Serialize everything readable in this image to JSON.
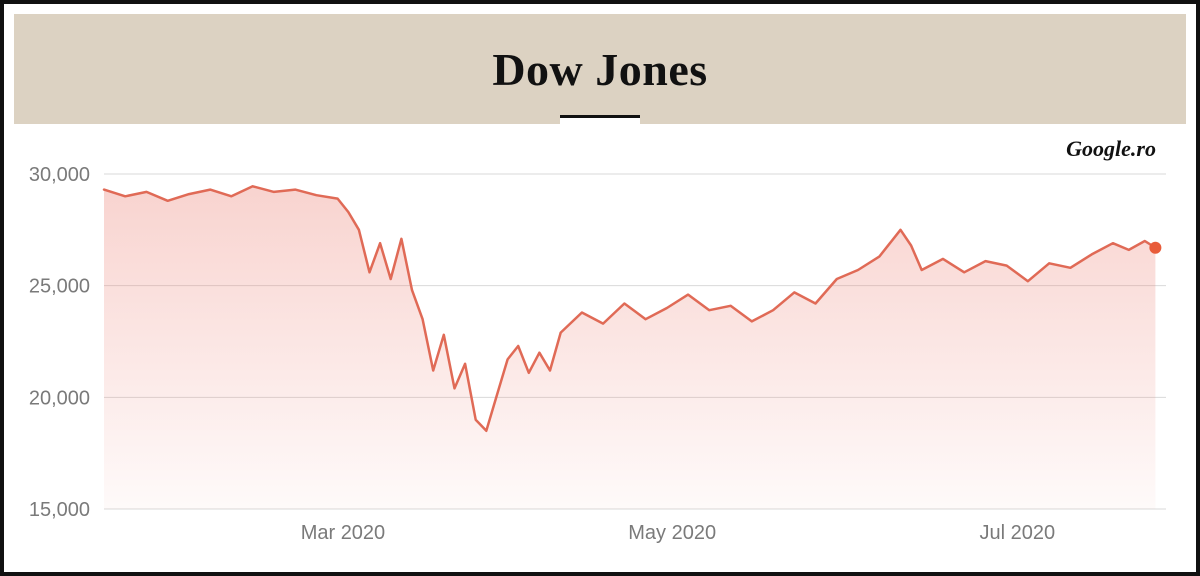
{
  "header": {
    "title": "Dow Jones"
  },
  "attribution": "Google.ro",
  "chart": {
    "type": "line-area",
    "background_color": "#ffffff",
    "line_color": "#e06a56",
    "line_width": 2.5,
    "fill_top_color": "rgba(236,130,118,0.35)",
    "fill_bottom_color": "rgba(236,130,118,0.04)",
    "grid_color": "#d9d9d9",
    "axis_label_color": "#7a7a7a",
    "axis_label_fontsize": 20,
    "end_marker": {
      "color": "#e85c3a",
      "radius": 6
    },
    "yaxis": {
      "min": 15000,
      "max": 30000,
      "ticks": [
        {
          "value": 15000,
          "label": "15,000"
        },
        {
          "value": 20000,
          "label": "20,000"
        },
        {
          "value": 25000,
          "label": "25,000"
        },
        {
          "value": 30000,
          "label": "30,000"
        }
      ]
    },
    "xaxis": {
      "min": 0,
      "max": 200,
      "ticks": [
        {
          "value": 45,
          "label": "Mar 2020"
        },
        {
          "value": 107,
          "label": "May 2020"
        },
        {
          "value": 172,
          "label": "Jul 2020"
        }
      ]
    },
    "series": [
      {
        "x": 0,
        "y": 29300
      },
      {
        "x": 4,
        "y": 29000
      },
      {
        "x": 8,
        "y": 29200
      },
      {
        "x": 12,
        "y": 28800
      },
      {
        "x": 16,
        "y": 29100
      },
      {
        "x": 20,
        "y": 29300
      },
      {
        "x": 24,
        "y": 29000
      },
      {
        "x": 28,
        "y": 29450
      },
      {
        "x": 32,
        "y": 29200
      },
      {
        "x": 36,
        "y": 29300
      },
      {
        "x": 40,
        "y": 29050
      },
      {
        "x": 44,
        "y": 28900
      },
      {
        "x": 46,
        "y": 28300
      },
      {
        "x": 48,
        "y": 27500
      },
      {
        "x": 50,
        "y": 25600
      },
      {
        "x": 52,
        "y": 26900
      },
      {
        "x": 54,
        "y": 25300
      },
      {
        "x": 56,
        "y": 27100
      },
      {
        "x": 58,
        "y": 24800
      },
      {
        "x": 60,
        "y": 23500
      },
      {
        "x": 62,
        "y": 21200
      },
      {
        "x": 64,
        "y": 22800
      },
      {
        "x": 66,
        "y": 20400
      },
      {
        "x": 68,
        "y": 21500
      },
      {
        "x": 70,
        "y": 19000
      },
      {
        "x": 72,
        "y": 18500
      },
      {
        "x": 74,
        "y": 20100
      },
      {
        "x": 76,
        "y": 21700
      },
      {
        "x": 78,
        "y": 22300
      },
      {
        "x": 80,
        "y": 21100
      },
      {
        "x": 82,
        "y": 22000
      },
      {
        "x": 84,
        "y": 21200
      },
      {
        "x": 86,
        "y": 22900
      },
      {
        "x": 90,
        "y": 23800
      },
      {
        "x": 94,
        "y": 23300
      },
      {
        "x": 98,
        "y": 24200
      },
      {
        "x": 102,
        "y": 23500
      },
      {
        "x": 106,
        "y": 24000
      },
      {
        "x": 110,
        "y": 24600
      },
      {
        "x": 114,
        "y": 23900
      },
      {
        "x": 118,
        "y": 24100
      },
      {
        "x": 122,
        "y": 23400
      },
      {
        "x": 126,
        "y": 23900
      },
      {
        "x": 130,
        "y": 24700
      },
      {
        "x": 134,
        "y": 24200
      },
      {
        "x": 138,
        "y": 25300
      },
      {
        "x": 142,
        "y": 25700
      },
      {
        "x": 146,
        "y": 26300
      },
      {
        "x": 150,
        "y": 27500
      },
      {
        "x": 152,
        "y": 26800
      },
      {
        "x": 154,
        "y": 25700
      },
      {
        "x": 158,
        "y": 26200
      },
      {
        "x": 162,
        "y": 25600
      },
      {
        "x": 166,
        "y": 26100
      },
      {
        "x": 170,
        "y": 25900
      },
      {
        "x": 174,
        "y": 25200
      },
      {
        "x": 178,
        "y": 26000
      },
      {
        "x": 182,
        "y": 25800
      },
      {
        "x": 186,
        "y": 26400
      },
      {
        "x": 190,
        "y": 26900
      },
      {
        "x": 193,
        "y": 26600
      },
      {
        "x": 196,
        "y": 27000
      },
      {
        "x": 198,
        "y": 26700
      }
    ]
  }
}
